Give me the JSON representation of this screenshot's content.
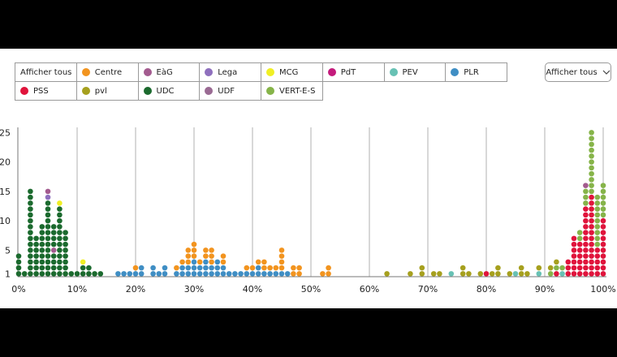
{
  "legend": {
    "items": [
      {
        "label": "Afficher tous",
        "color": null
      },
      {
        "label": "Centre",
        "color": "#f2941f"
      },
      {
        "label": "EàG",
        "color": "#a35b8f"
      },
      {
        "label": "Lega",
        "color": "#8e6fbd"
      },
      {
        "label": "MCG",
        "color": "#f0ef24"
      },
      {
        "label": "PdT",
        "color": "#c41b7c"
      },
      {
        "label": "PEV",
        "color": "#67c1b4"
      },
      {
        "label": "PLR",
        "color": "#3f8ec4"
      },
      {
        "label": "PSS",
        "color": "#e0143c"
      },
      {
        "label": "pvl",
        "color": "#a6a01e"
      },
      {
        "label": "UDC",
        "color": "#1b6a2e"
      },
      {
        "label": "UDF",
        "color": "#9a6a93"
      },
      {
        "label": "VERT-E-S",
        "color": "#86b449"
      }
    ]
  },
  "dropdown": {
    "label": "Afficher tous",
    "icon": "chevron-down-icon"
  },
  "chart_data": {
    "type": "scatter",
    "subtype": "dot-stack-histogram",
    "x_ticks": [
      "0%",
      "10%",
      "20%",
      "30%",
      "40%",
      "50%",
      "60%",
      "70%",
      "80%",
      "90%",
      "100%"
    ],
    "y_ticks": [
      1,
      5,
      10,
      15,
      20,
      25
    ],
    "xlim": [
      0,
      100
    ],
    "ylim": [
      0,
      27
    ],
    "grid": "vertical",
    "columns": [
      {
        "x": 0,
        "stack": [
          [
            "UDC",
            4
          ]
        ]
      },
      {
        "x": 1,
        "stack": [
          [
            "UDC",
            1
          ]
        ]
      },
      {
        "x": 2,
        "stack": [
          [
            "UDC",
            15
          ]
        ]
      },
      {
        "x": 3,
        "stack": [
          [
            "UDC",
            7
          ]
        ]
      },
      {
        "x": 4,
        "stack": [
          [
            "UDC",
            9
          ]
        ]
      },
      {
        "x": 5,
        "stack": [
          [
            "UDC",
            13
          ],
          [
            "Lega",
            1
          ],
          [
            "EàG",
            1
          ]
        ]
      },
      {
        "x": 6,
        "stack": [
          [
            "UDC",
            4
          ],
          [
            "EàG",
            1
          ],
          [
            "UDC",
            4
          ]
        ]
      },
      {
        "x": 7,
        "stack": [
          [
            "UDC",
            12
          ],
          [
            "MCG",
            1
          ]
        ]
      },
      {
        "x": 8,
        "stack": [
          [
            "UDC",
            8
          ]
        ]
      },
      {
        "x": 9,
        "stack": [
          [
            "UDC",
            1
          ]
        ]
      },
      {
        "x": 10,
        "stack": [
          [
            "UDC",
            1
          ]
        ]
      },
      {
        "x": 11,
        "stack": [
          [
            "UDC",
            2
          ],
          [
            "MCG",
            1
          ]
        ]
      },
      {
        "x": 12,
        "stack": [
          [
            "UDC",
            2
          ]
        ]
      },
      {
        "x": 13,
        "stack": [
          [
            "UDC",
            1
          ]
        ]
      },
      {
        "x": 14,
        "stack": [
          [
            "UDC",
            1
          ]
        ]
      },
      {
        "x": 17,
        "stack": [
          [
            "PLR",
            1
          ]
        ]
      },
      {
        "x": 18,
        "stack": [
          [
            "PLR",
            1
          ]
        ]
      },
      {
        "x": 19,
        "stack": [
          [
            "PLR",
            1
          ]
        ]
      },
      {
        "x": 20,
        "stack": [
          [
            "PLR",
            1
          ],
          [
            "Centre",
            1
          ]
        ]
      },
      {
        "x": 21,
        "stack": [
          [
            "PLR",
            2
          ]
        ]
      },
      {
        "x": 23,
        "stack": [
          [
            "PLR",
            2
          ]
        ]
      },
      {
        "x": 24,
        "stack": [
          [
            "PLR",
            1
          ]
        ]
      },
      {
        "x": 25,
        "stack": [
          [
            "PLR",
            2
          ]
        ]
      },
      {
        "x": 27,
        "stack": [
          [
            "PLR",
            1
          ],
          [
            "Centre",
            1
          ]
        ]
      },
      {
        "x": 28,
        "stack": [
          [
            "PLR",
            2
          ],
          [
            "Centre",
            1
          ]
        ]
      },
      {
        "x": 29,
        "stack": [
          [
            "PLR",
            2
          ],
          [
            "Centre",
            3
          ]
        ]
      },
      {
        "x": 30,
        "stack": [
          [
            "PLR",
            3
          ],
          [
            "Centre",
            3
          ]
        ]
      },
      {
        "x": 31,
        "stack": [
          [
            "PLR",
            2
          ],
          [
            "Centre",
            1
          ]
        ]
      },
      {
        "x": 32,
        "stack": [
          [
            "PLR",
            3
          ],
          [
            "Centre",
            2
          ]
        ]
      },
      {
        "x": 33,
        "stack": [
          [
            "PLR",
            2
          ],
          [
            "Centre",
            3
          ]
        ]
      },
      {
        "x": 34,
        "stack": [
          [
            "PLR",
            3
          ]
        ]
      },
      {
        "x": 35,
        "stack": [
          [
            "PLR",
            2
          ],
          [
            "Centre",
            2
          ]
        ]
      },
      {
        "x": 36,
        "stack": [
          [
            "PLR",
            1
          ]
        ]
      },
      {
        "x": 37,
        "stack": [
          [
            "PLR",
            1
          ]
        ]
      },
      {
        "x": 38,
        "stack": [
          [
            "PLR",
            1
          ]
        ]
      },
      {
        "x": 39,
        "stack": [
          [
            "PLR",
            1
          ],
          [
            "Centre",
            1
          ]
        ]
      },
      {
        "x": 40,
        "stack": [
          [
            "PLR",
            1
          ],
          [
            "Centre",
            1
          ]
        ]
      },
      {
        "x": 41,
        "stack": [
          [
            "PLR",
            2
          ],
          [
            "Centre",
            1
          ]
        ]
      },
      {
        "x": 42,
        "stack": [
          [
            "PLR",
            1
          ],
          [
            "Centre",
            2
          ]
        ]
      },
      {
        "x": 43,
        "stack": [
          [
            "PLR",
            1
          ],
          [
            "Centre",
            1
          ]
        ]
      },
      {
        "x": 44,
        "stack": [
          [
            "PLR",
            1
          ],
          [
            "Centre",
            1
          ]
        ]
      },
      {
        "x": 45,
        "stack": [
          [
            "PLR",
            1
          ],
          [
            "Centre",
            4
          ]
        ]
      },
      {
        "x": 46,
        "stack": [
          [
            "PLR",
            1
          ]
        ]
      },
      {
        "x": 47,
        "stack": [
          [
            "Centre",
            2
          ]
        ]
      },
      {
        "x": 48,
        "stack": [
          [
            "Centre",
            2
          ]
        ]
      },
      {
        "x": 52,
        "stack": [
          [
            "Centre",
            1
          ]
        ]
      },
      {
        "x": 53,
        "stack": [
          [
            "Centre",
            2
          ]
        ]
      },
      {
        "x": 63,
        "stack": [
          [
            "pvl",
            1
          ]
        ]
      },
      {
        "x": 67,
        "stack": [
          [
            "pvl",
            1
          ]
        ]
      },
      {
        "x": 69,
        "stack": [
          [
            "pvl",
            2
          ]
        ]
      },
      {
        "x": 71,
        "stack": [
          [
            "pvl",
            1
          ]
        ]
      },
      {
        "x": 72,
        "stack": [
          [
            "pvl",
            1
          ]
        ]
      },
      {
        "x": 74,
        "stack": [
          [
            "PEV",
            1
          ]
        ]
      },
      {
        "x": 76,
        "stack": [
          [
            "pvl",
            2
          ]
        ]
      },
      {
        "x": 77,
        "stack": [
          [
            "pvl",
            1
          ]
        ]
      },
      {
        "x": 79,
        "stack": [
          [
            "pvl",
            1
          ]
        ]
      },
      {
        "x": 80,
        "stack": [
          [
            "PSS",
            1
          ]
        ]
      },
      {
        "x": 81,
        "stack": [
          [
            "pvl",
            1
          ]
        ]
      },
      {
        "x": 82,
        "stack": [
          [
            "pvl",
            2
          ]
        ]
      },
      {
        "x": 84,
        "stack": [
          [
            "pvl",
            1
          ]
        ]
      },
      {
        "x": 85,
        "stack": [
          [
            "PEV",
            1
          ]
        ]
      },
      {
        "x": 86,
        "stack": [
          [
            "pvl",
            2
          ]
        ]
      },
      {
        "x": 87,
        "stack": [
          [
            "pvl",
            1
          ]
        ]
      },
      {
        "x": 89,
        "stack": [
          [
            "PEV",
            1
          ],
          [
            "pvl",
            1
          ]
        ]
      },
      {
        "x": 91,
        "stack": [
          [
            "VERT-E-S",
            1
          ],
          [
            "pvl",
            1
          ]
        ]
      },
      {
        "x": 92,
        "stack": [
          [
            "PSS",
            1
          ],
          [
            "VERT-E-S",
            1
          ],
          [
            "pvl",
            1
          ]
        ]
      },
      {
        "x": 93,
        "stack": [
          [
            "PEV",
            1
          ],
          [
            "VERT-E-S",
            1
          ]
        ]
      },
      {
        "x": 94,
        "stack": [
          [
            "PSS",
            3
          ]
        ]
      },
      {
        "x": 95,
        "stack": [
          [
            "PSS",
            7
          ]
        ]
      },
      {
        "x": 96,
        "stack": [
          [
            "PSS",
            6
          ],
          [
            "VERT-E-S",
            2
          ]
        ]
      },
      {
        "x": 97,
        "stack": [
          [
            "PSS",
            12
          ],
          [
            "VERT-E-S",
            3
          ],
          [
            "EàG",
            1
          ]
        ]
      },
      {
        "x": 98,
        "stack": [
          [
            "PSS",
            14
          ],
          [
            "VERT-E-S",
            11
          ]
        ]
      },
      {
        "x": 99,
        "stack": [
          [
            "PSS",
            5
          ],
          [
            "VERT-E-S",
            9
          ]
        ]
      },
      {
        "x": 100,
        "stack": [
          [
            "PSS",
            10
          ],
          [
            "VERT-E-S",
            6
          ]
        ]
      }
    ]
  }
}
